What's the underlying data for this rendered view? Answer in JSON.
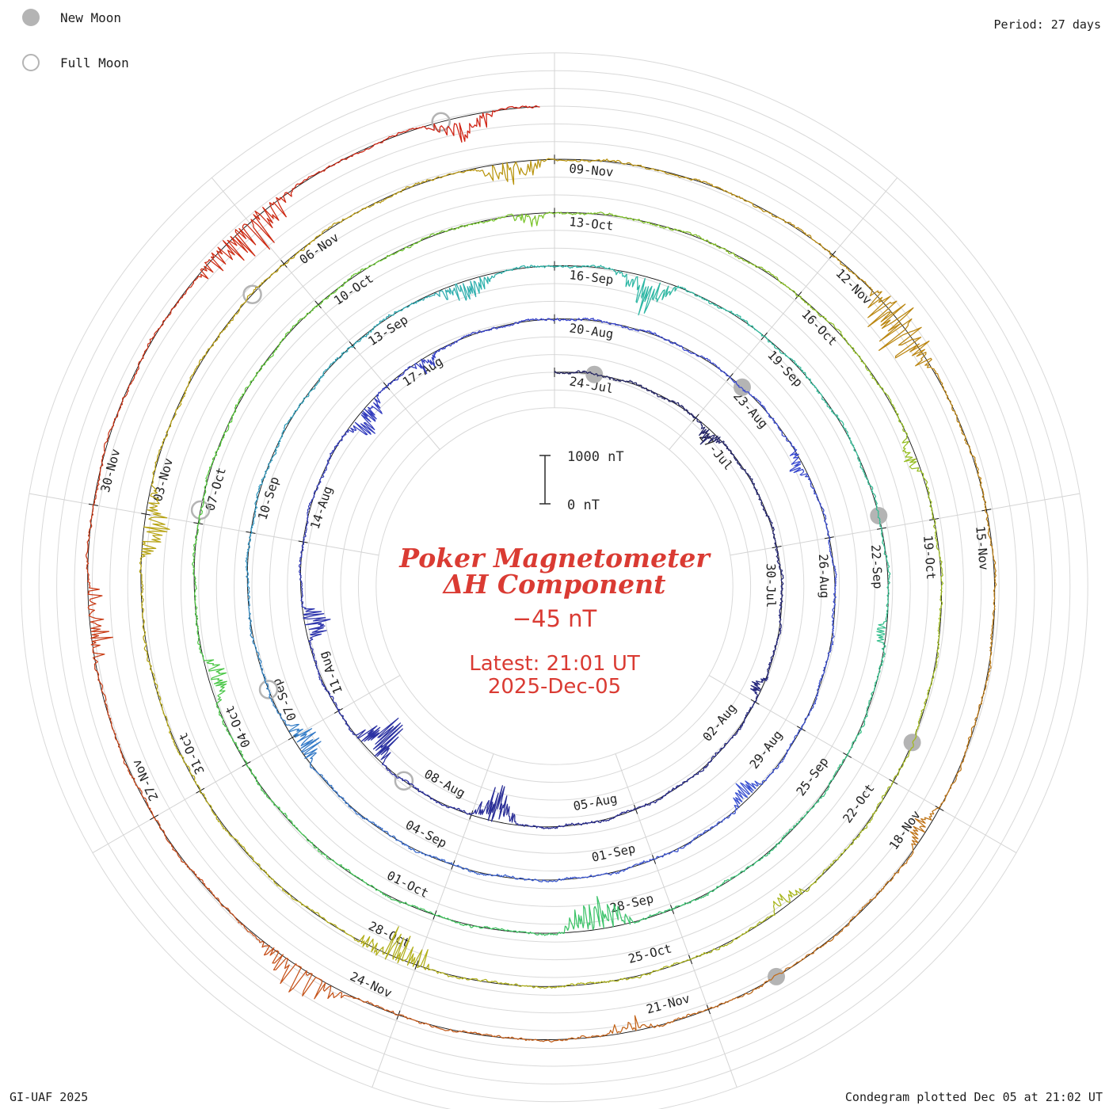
{
  "legend": {
    "new_moon_label": "New Moon",
    "full_moon_label": "Full Moon"
  },
  "header": {
    "period_label": "Period: 27 days"
  },
  "footer": {
    "credit": "GI-UAF 2025",
    "plotted": "Condegram plotted Dec 05 at 21:02 UT"
  },
  "center": {
    "title_line1": "Poker Magnetometer",
    "title_line2": "ΔH Component",
    "current_value": "−45 nT",
    "latest_time": "Latest: 21:01 UT",
    "latest_date": "2025-Dec-05"
  },
  "scale_bar": {
    "top_label": "1000 nT",
    "bottom_label": "0 nT"
  },
  "chart_data": {
    "type": "line",
    "subtype": "condegram-polar-spiral",
    "station": "Poker",
    "component": "ΔH",
    "period_days": 27,
    "total_days": 134.875,
    "start_label": "24-Jul",
    "end_label": "2025-Dec-05",
    "latest_value_nT": -45,
    "latest_time": "21:01 UT",
    "scale_reference_nT": 1000,
    "label_step_days": 3,
    "date_labels": [
      "24-Jul",
      "27-Jul",
      "30-Jul",
      "02-Aug",
      "05-Aug",
      "08-Aug",
      "11-Aug",
      "14-Aug",
      "17-Aug",
      "20-Aug",
      "23-Aug",
      "26-Aug",
      "29-Aug",
      "01-Sep",
      "04-Sep",
      "07-Sep",
      "10-Sep",
      "13-Sep",
      "16-Sep",
      "19-Sep",
      "22-Sep",
      "25-Sep",
      "28-Sep",
      "01-Oct",
      "04-Oct",
      "07-Oct",
      "10-Oct",
      "13-Oct",
      "16-Oct",
      "19-Oct",
      "22-Oct",
      "25-Oct",
      "28-Oct",
      "31-Oct",
      "03-Nov",
      "06-Nov",
      "09-Nov",
      "12-Nov",
      "15-Nov",
      "18-Nov",
      "21-Nov",
      "24-Nov",
      "27-Nov",
      "30-Nov"
    ],
    "moon_events": {
      "new_moon_t_days": [
        0.8,
        30.25,
        59.83,
        89.52,
        119.28
      ],
      "full_moon_t_days": [
        16.33,
        45.76,
        75.16,
        104.55,
        133.97
      ]
    },
    "color_stops": [
      [
        0,
        "#23235c"
      ],
      [
        13,
        "#272a90"
      ],
      [
        27,
        "#3642cd"
      ],
      [
        40,
        "#3b55d2"
      ],
      [
        48,
        "#2f93c0"
      ],
      [
        54,
        "#2cb5a8"
      ],
      [
        62,
        "#35c08b"
      ],
      [
        69,
        "#3ec45b"
      ],
      [
        76,
        "#55c93a"
      ],
      [
        81,
        "#7cc42a"
      ],
      [
        88,
        "#9ebb1e"
      ],
      [
        95,
        "#b0b11a"
      ],
      [
        102,
        "#b7a313"
      ],
      [
        108,
        "#b9940f"
      ],
      [
        115,
        "#bd7d14"
      ],
      [
        122,
        "#c45e1b"
      ],
      [
        128,
        "#c93b16"
      ],
      [
        134.9,
        "#d01d10"
      ]
    ],
    "disturbances": [
      [
        3.2,
        0.5,
        350,
        -1
      ],
      [
        8.5,
        0.4,
        300,
        -1
      ],
      [
        14.2,
        0.8,
        800,
        -1
      ],
      [
        16.8,
        0.7,
        950,
        -1
      ],
      [
        19.3,
        0.6,
        650,
        -1
      ],
      [
        23.0,
        0.8,
        520,
        -1
      ],
      [
        24.5,
        0.5,
        420,
        -1
      ],
      [
        31.5,
        0.5,
        300,
        -1
      ],
      [
        37.0,
        0.6,
        380,
        -1
      ],
      [
        44.5,
        0.7,
        520,
        -1
      ],
      [
        52.3,
        0.9,
        400,
        -1
      ],
      [
        54.8,
        0.9,
        800,
        -1
      ],
      [
        61.2,
        0.4,
        260,
        -1
      ],
      [
        66.5,
        0.9,
        680,
        -1
      ],
      [
        72.8,
        0.6,
        460,
        -1
      ],
      [
        80.5,
        0.4,
        300,
        -1
      ],
      [
        86.0,
        0.5,
        300,
        -1
      ],
      [
        91.5,
        0.5,
        340,
        -1
      ],
      [
        95.8,
        0.9,
        650,
        -0.4
      ],
      [
        101.5,
        0.8,
        560,
        -1
      ],
      [
        107.2,
        0.7,
        480,
        -1
      ],
      [
        111.5,
        1.0,
        700,
        -0.2
      ],
      [
        117.0,
        0.5,
        300,
        -1
      ],
      [
        120.5,
        0.5,
        350,
        -1
      ],
      [
        123.5,
        1.0,
        560,
        0.5
      ],
      [
        127.5,
        0.8,
        520,
        -0.5
      ],
      [
        131.3,
        1.2,
        700,
        -0.4
      ],
      [
        133.8,
        0.7,
        500,
        -1
      ]
    ],
    "quiet_variation_nT": {
      "diurnal": 22,
      "semidiurnal": 8,
      "high_freq": 10,
      "jitter": 18
    }
  }
}
